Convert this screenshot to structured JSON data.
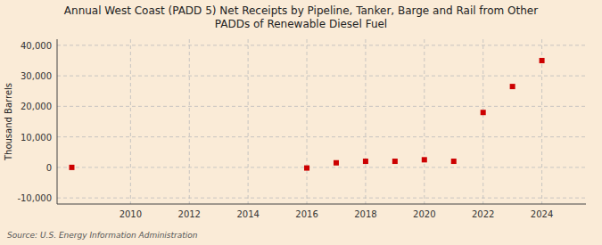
{
  "chart_data": {
    "type": "scatter",
    "title": "Annual West Coast (PADD 5) Net Receipts by Pipeline, Tanker, Barge and Rail from Other\nPADDs of Renewable Diesel Fuel",
    "ylabel": "Thousand Barrels",
    "annotations": [
      "Source: U.S. Energy Information Administration"
    ],
    "x": [
      2008,
      2016,
      2017,
      2018,
      2019,
      2020,
      2021,
      2022,
      2023,
      2024
    ],
    "values": [
      0,
      -200,
      1500,
      2000,
      2000,
      2500,
      2000,
      18000,
      26500,
      35000
    ],
    "color": "#cc0000",
    "marker": "square",
    "xlim": [
      2007.5,
      2025.5
    ],
    "ylim": [
      -12000,
      42000
    ],
    "xticks": [
      2010,
      2012,
      2014,
      2016,
      2018,
      2020,
      2022,
      2024
    ],
    "yticks": [
      {
        "value": -10000,
        "label": "-10,000"
      },
      0,
      {
        "value": 10000,
        "label": "10,000"
      },
      {
        "value": 20000,
        "label": "20,000"
      },
      {
        "value": 30000,
        "label": "30,000"
      },
      {
        "value": 40000,
        "label": "40,000"
      }
    ],
    "grid": true
  }
}
